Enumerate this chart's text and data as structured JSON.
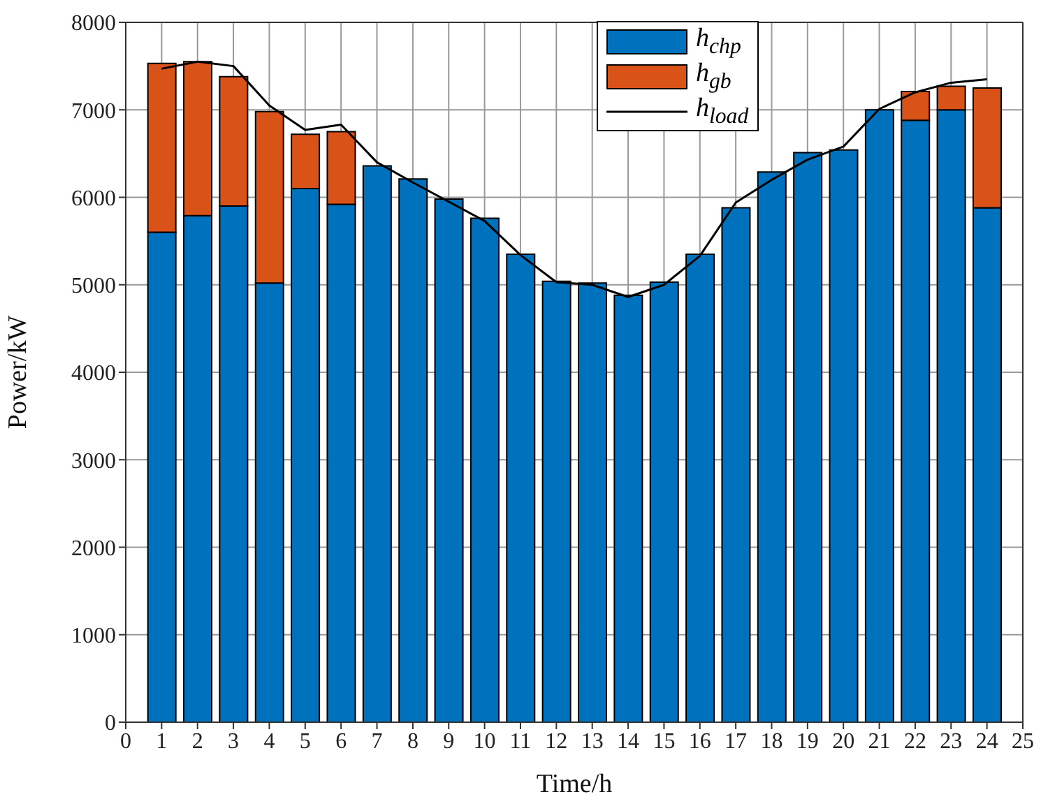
{
  "chart_data": {
    "type": "bar",
    "stacked": true,
    "xlabel": "Time/h",
    "ylabel": "Power/kW",
    "x": [
      1,
      2,
      3,
      4,
      5,
      6,
      7,
      8,
      9,
      10,
      11,
      12,
      13,
      14,
      15,
      16,
      17,
      18,
      19,
      20,
      21,
      22,
      23,
      24
    ],
    "xlim": [
      0,
      25
    ],
    "xticks": [
      0,
      1,
      2,
      3,
      4,
      5,
      6,
      7,
      8,
      9,
      10,
      11,
      12,
      13,
      14,
      15,
      16,
      17,
      18,
      19,
      20,
      21,
      22,
      23,
      24,
      25
    ],
    "ylim": [
      0,
      8000
    ],
    "yticks": [
      0,
      1000,
      2000,
      3000,
      4000,
      5000,
      6000,
      7000,
      8000
    ],
    "grid": true,
    "legend": "top right",
    "series": [
      {
        "name": "h$_{chp}$",
        "color": "#0072bd",
        "values": [
          5600,
          5790,
          5900,
          5020,
          6100,
          5920,
          6360,
          6210,
          5980,
          5760,
          5350,
          5040,
          5020,
          4880,
          5030,
          5350,
          5880,
          6290,
          6510,
          6540,
          7000,
          6880,
          7000,
          5880
        ]
      },
      {
        "name": "h$_{gb}$",
        "color": "#d95319",
        "values": [
          1930,
          1760,
          1480,
          1960,
          620,
          830,
          0,
          0,
          0,
          0,
          0,
          0,
          0,
          0,
          0,
          0,
          0,
          0,
          0,
          0,
          0,
          330,
          270,
          1370
        ]
      },
      {
        "name": "h$_{load}$",
        "type": "line",
        "color": "#000000",
        "values": [
          7470,
          7550,
          7500,
          7050,
          6770,
          6830,
          6400,
          6170,
          5950,
          5730,
          5340,
          5030,
          5000,
          4860,
          5000,
          5330,
          5940,
          6200,
          6430,
          6580,
          7010,
          7200,
          7310,
          7350
        ]
      }
    ]
  }
}
